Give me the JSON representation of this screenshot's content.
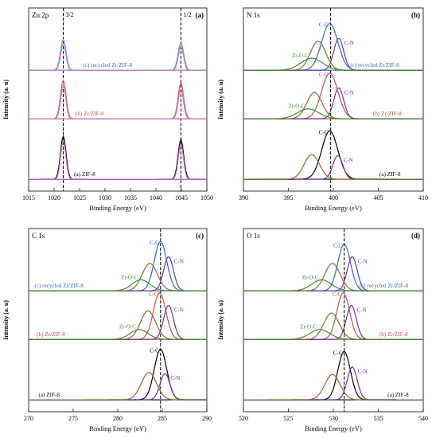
{
  "figure": {
    "width": 543,
    "height": 550
  },
  "chart_data": [
    {
      "panel": "(a)",
      "type": "line",
      "corner_label": "Zn 2p",
      "xlabel": "Binding Energy (eV)",
      "ylabel": "Intensity (a. u)",
      "xlim": [
        1015,
        1050
      ],
      "xticks": [
        1015,
        1020,
        1025,
        1030,
        1035,
        1040,
        1045,
        1050
      ],
      "ref_lines": [
        1021.8,
        1044.9
      ],
      "ref_labels": [
        "3/2",
        "1/2"
      ],
      "stacks": [
        {
          "label": "(c) recycled Zr/ZIF-8",
          "label_color": "#2f6eb5",
          "label_x": 1030.5,
          "peaks": [
            {
              "center": 1021.8,
              "height": 0.56,
              "width": 0.55,
              "color": "#5b9bd5"
            },
            {
              "center": 1021.8,
              "height": 0.48,
              "width": 0.5,
              "color": "#c879c8"
            },
            {
              "center": 1044.9,
              "height": 0.5,
              "width": 0.55,
              "color": "#5b9bd5"
            },
            {
              "center": 1044.9,
              "height": 0.43,
              "width": 0.5,
              "color": "#c879c8"
            }
          ],
          "baseline_color": "#5b9bd5"
        },
        {
          "label": "(b) Zr/ZIF-8",
          "label_color": "#c0504d",
          "label_x": 1027.0,
          "peaks": [
            {
              "center": 1021.8,
              "height": 0.7,
              "width": 0.55,
              "color": "#d06060"
            },
            {
              "center": 1021.8,
              "height": 0.6,
              "width": 0.5,
              "color": "#c879c8"
            },
            {
              "center": 1044.9,
              "height": 0.65,
              "width": 0.55,
              "color": "#d06060"
            },
            {
              "center": 1044.9,
              "height": 0.55,
              "width": 0.5,
              "color": "#c879c8"
            }
          ],
          "baseline_color": "#d06060"
        },
        {
          "label": "(a) ZIF-8",
          "label_color": "#000000",
          "label_x": 1026.0,
          "peaks": [
            {
              "center": 1021.8,
              "height": 0.78,
              "width": 0.55,
              "color": "#000000"
            },
            {
              "center": 1021.8,
              "height": 0.7,
              "width": 0.5,
              "color": "#c879c8"
            },
            {
              "center": 1044.9,
              "height": 0.72,
              "width": 0.55,
              "color": "#000000"
            },
            {
              "center": 1044.9,
              "height": 0.64,
              "width": 0.5,
              "color": "#c879c8"
            }
          ],
          "baseline_color": "#000000"
        }
      ]
    },
    {
      "panel": "(b)",
      "type": "line",
      "corner_label": "N 1s",
      "xlabel": "Binding Energy (eV)",
      "ylabel": "Intensity (a. u)",
      "xlim": [
        390,
        410
      ],
      "xticks": [
        390,
        395,
        400,
        405,
        410
      ],
      "ref_lines": [
        399.7
      ],
      "ref_labels": [],
      "stacks": [
        {
          "label": "(c) recycled Zr/ZIF-8",
          "label_color": "#2f6eb5",
          "label_x": 404.6,
          "peaks": [
            {
              "center": 399.6,
              "height": 0.85,
              "width": 0.9,
              "color": "#2f6eb5",
              "tag": "C-C"
            },
            {
              "center": 400.6,
              "height": 0.58,
              "width": 0.55,
              "color": "#7030a0",
              "tag": "C-N"
            },
            {
              "center": 398.3,
              "height": 0.53,
              "width": 0.85,
              "color": "#8b6b2a"
            },
            {
              "center": 397.6,
              "height": 0.22,
              "width": 1.2,
              "color": "#3a8a3a",
              "tag": "Zr-O-C"
            }
          ],
          "baseline_color": "#2f6eb5"
        },
        {
          "label": "(b) Zr/ZIF-8",
          "label_color": "#c0504d",
          "label_x": 406.0,
          "peaks": [
            {
              "center": 399.6,
              "height": 0.83,
              "width": 0.9,
              "color": "#c0504d",
              "tag": "C-C"
            },
            {
              "center": 400.6,
              "height": 0.56,
              "width": 0.55,
              "color": "#7030a0",
              "tag": "C-N"
            },
            {
              "center": 397.9,
              "height": 0.48,
              "width": 0.85,
              "color": "#8b6b2a"
            },
            {
              "center": 397.2,
              "height": 0.18,
              "width": 1.2,
              "color": "#3a8a3a",
              "tag": "Zr-O-C"
            }
          ],
          "baseline_color": "#c0504d"
        },
        {
          "label": "(a) ZIF-8",
          "label_color": "#000000",
          "label_x": 406.3,
          "peaks": [
            {
              "center": 399.6,
              "height": 0.88,
              "width": 0.9,
              "color": "#000000",
              "tag": "C-C"
            },
            {
              "center": 400.5,
              "height": 0.43,
              "width": 0.55,
              "color": "#7030a0",
              "tag": "C-N"
            },
            {
              "center": 397.6,
              "height": 0.45,
              "width": 0.85,
              "color": "#8b6b2a"
            }
          ],
          "baseline_color": "#000000"
        }
      ]
    },
    {
      "panel": "(c)",
      "type": "line",
      "corner_label": "C 1s",
      "xlabel": "Binding Energy (eV)",
      "ylabel": "Intensity (a. u)",
      "xlim": [
        270,
        290
      ],
      "xticks": [
        270,
        275,
        280,
        285,
        290
      ],
      "ref_lines": [
        284.8
      ],
      "ref_labels": [],
      "stacks": [
        {
          "label": "(c) recycled Zr/ZIF-8",
          "label_color": "#2f6eb5",
          "label_x": 273.4,
          "peaks": [
            {
              "center": 284.8,
              "height": 0.9,
              "width": 0.7,
              "color": "#2f6eb5",
              "tag": "C-C"
            },
            {
              "center": 285.7,
              "height": 0.62,
              "width": 0.55,
              "color": "#7030a0",
              "tag": "C-N"
            },
            {
              "center": 283.6,
              "height": 0.5,
              "width": 0.85,
              "color": "#8b6b2a"
            },
            {
              "center": 282.6,
              "height": 0.2,
              "width": 1.0,
              "color": "#3a8a3a",
              "tag": "Zr-O-C"
            }
          ],
          "baseline_color": "#2f6eb5"
        },
        {
          "label": "(b) Zr/ZIF-8",
          "label_color": "#c0504d",
          "label_x": 272.5,
          "peaks": [
            {
              "center": 284.7,
              "height": 0.85,
              "width": 0.7,
              "color": "#c0504d",
              "tag": "C-C"
            },
            {
              "center": 285.7,
              "height": 0.62,
              "width": 0.55,
              "color": "#7030a0",
              "tag": "C-N"
            },
            {
              "center": 283.4,
              "height": 0.52,
              "width": 0.85,
              "color": "#8b6b2a"
            },
            {
              "center": 282.4,
              "height": 0.18,
              "width": 1.0,
              "color": "#3a8a3a",
              "tag": "Zr-O-C"
            }
          ],
          "baseline_color": "#c0504d"
        },
        {
          "label": "(a) ZIF-8",
          "label_color": "#000000",
          "label_x": 272.3,
          "peaks": [
            {
              "center": 284.8,
              "height": 0.92,
              "width": 0.7,
              "color": "#000000",
              "tag": "C-C"
            },
            {
              "center": 285.3,
              "height": 0.48,
              "width": 0.55,
              "color": "#7030a0",
              "tag": "C-N"
            },
            {
              "center": 283.5,
              "height": 0.5,
              "width": 0.85,
              "color": "#8b6b2a"
            }
          ],
          "baseline_color": "#000000"
        }
      ]
    },
    {
      "panel": "(d)",
      "type": "line",
      "corner_label": "O 1s",
      "xlabel": "Binding Energy (eV)",
      "ylabel": "Intensity (a. u)",
      "xlim": [
        520,
        540
      ],
      "xticks": [
        520,
        525,
        530,
        535,
        540
      ],
      "ref_lines": [
        531.2
      ],
      "ref_labels": [],
      "stacks": [
        {
          "label": "(c) recycled Zr/ZIF-8",
          "label_color": "#2f6eb5",
          "label_x": 535.6,
          "peaks": [
            {
              "center": 531.2,
              "height": 0.85,
              "width": 0.7,
              "color": "#2f6eb5",
              "tag": "C-C"
            },
            {
              "center": 532.1,
              "height": 0.62,
              "width": 0.55,
              "color": "#7030a0",
              "tag": "C-N"
            },
            {
              "center": 529.9,
              "height": 0.5,
              "width": 0.85,
              "color": "#8b6b2a"
            },
            {
              "center": 528.7,
              "height": 0.2,
              "width": 1.1,
              "color": "#3a8a3a",
              "tag": "Zr-O-C"
            }
          ],
          "baseline_color": "#2f6eb5"
        },
        {
          "label": "(b) Zr/ZIF-8",
          "label_color": "#c0504d",
          "label_x": 536.7,
          "peaks": [
            {
              "center": 531.1,
              "height": 0.85,
              "width": 0.7,
              "color": "#c0504d",
              "tag": "C-C"
            },
            {
              "center": 532.0,
              "height": 0.62,
              "width": 0.55,
              "color": "#7030a0",
              "tag": "C-N"
            },
            {
              "center": 529.8,
              "height": 0.48,
              "width": 0.85,
              "color": "#8b6b2a"
            },
            {
              "center": 528.5,
              "height": 0.18,
              "width": 1.1,
              "color": "#3a8a3a",
              "tag": "Zr-O-C"
            }
          ],
          "baseline_color": "#c0504d"
        },
        {
          "label": "(a) ZIF-8",
          "label_color": "#000000",
          "label_x": 537.2,
          "peaks": [
            {
              "center": 531.2,
              "height": 0.88,
              "width": 0.7,
              "color": "#000000",
              "tag": "C-C"
            },
            {
              "center": 532.1,
              "height": 0.6,
              "width": 0.55,
              "color": "#7030a0",
              "tag": "C-N"
            },
            {
              "center": 529.9,
              "height": 0.46,
              "width": 0.85,
              "color": "#8b6b2a"
            }
          ],
          "baseline_color": "#000000"
        }
      ]
    }
  ]
}
